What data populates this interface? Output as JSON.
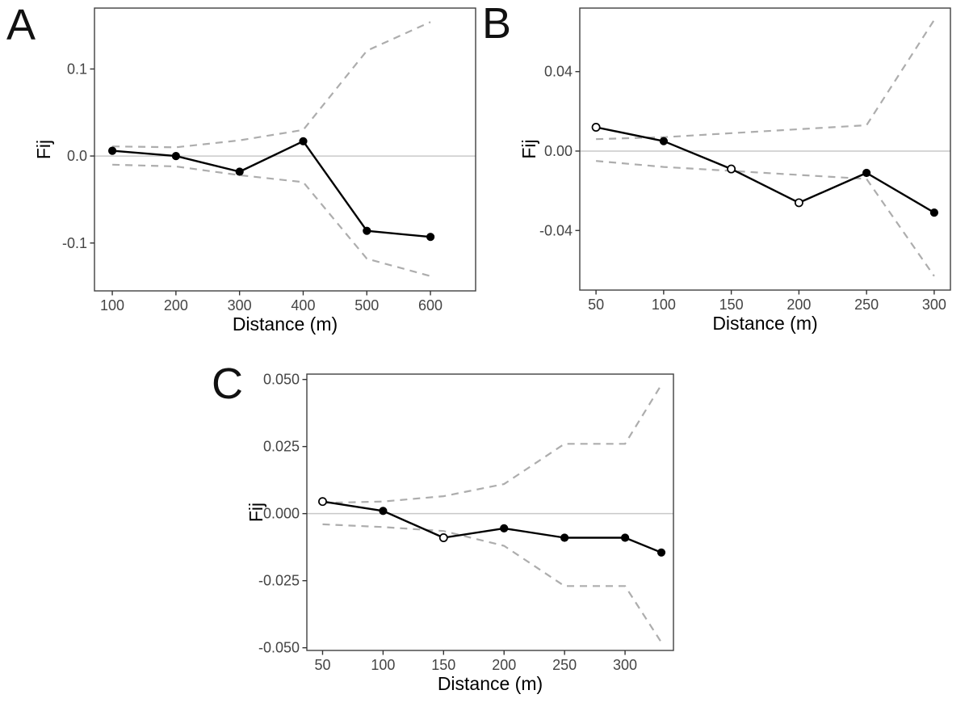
{
  "figure": {
    "background": "#ffffff",
    "panel_letters": [
      "A",
      "B",
      "C"
    ]
  },
  "colors": {
    "observed_line": "#000000",
    "envelope_dashed": "#adadad",
    "zero_line": "#c9c9c9",
    "panel_border": "#404040",
    "tick_mark": "#333333",
    "tick_text": "#444444",
    "axis_title_text": "#000000",
    "open_marker_fill": "#ffffff"
  },
  "chart_data": [
    {
      "type": "line",
      "panel_label": "A",
      "title": "",
      "xlabel": "Distance (m)",
      "ylabel": "Fij",
      "grid": "off",
      "legend": "none",
      "xlim": [
        72,
        671
      ],
      "ylim": [
        -0.155,
        0.17
      ],
      "xticks": [
        100,
        200,
        300,
        400,
        500,
        600
      ],
      "xtick_labels": [
        "100",
        "200",
        "300",
        "400",
        "500",
        "600"
      ],
      "yticks": [
        -0.1,
        0.0,
        0.1
      ],
      "ytick_labels": [
        "-0.1",
        "0.0",
        "0.1"
      ],
      "zero_line": 0,
      "x": [
        100,
        200,
        300,
        400,
        500,
        600
      ],
      "series": [
        {
          "name": "observed-kinship",
          "style": "solid-points",
          "values": [
            0.006,
            0.0,
            -0.018,
            0.017,
            -0.086,
            -0.093
          ],
          "open_markers": [
            false,
            false,
            false,
            false,
            false,
            false
          ]
        },
        {
          "name": "upper-confidence-envelope",
          "style": "dashed",
          "values": [
            0.011,
            0.01,
            0.018,
            0.03,
            0.121,
            0.154
          ]
        },
        {
          "name": "lower-confidence-envelope",
          "style": "dashed",
          "values": [
            -0.01,
            -0.012,
            -0.022,
            -0.03,
            -0.118,
            -0.138
          ]
        }
      ]
    },
    {
      "type": "line",
      "panel_label": "B",
      "title": "",
      "xlabel": "Distance (m)",
      "ylabel": "Fij",
      "grid": "off",
      "legend": "none",
      "xlim": [
        38,
        312
      ],
      "ylim": [
        -0.07,
        0.072
      ],
      "xticks": [
        50,
        100,
        150,
        200,
        250,
        300
      ],
      "xtick_labels": [
        "50",
        "100",
        "150",
        "200",
        "250",
        "300"
      ],
      "yticks": [
        -0.04,
        0.0,
        0.04
      ],
      "ytick_labels": [
        "-0.04",
        "0.00",
        "0.04"
      ],
      "zero_line": 0,
      "x": [
        50,
        100,
        150,
        200,
        250,
        300
      ],
      "series": [
        {
          "name": "observed-kinship",
          "style": "solid-points",
          "values": [
            0.012,
            0.005,
            -0.009,
            -0.026,
            -0.011,
            -0.031
          ],
          "open_markers": [
            true,
            false,
            true,
            true,
            false,
            false
          ]
        },
        {
          "name": "upper-confidence-envelope",
          "style": "dashed",
          "values": [
            0.006,
            0.007,
            0.009,
            0.011,
            0.013,
            0.066
          ]
        },
        {
          "name": "lower-confidence-envelope",
          "style": "dashed",
          "values": [
            -0.005,
            -0.008,
            -0.01,
            -0.012,
            -0.014,
            -0.063
          ]
        }
      ]
    },
    {
      "type": "line",
      "panel_label": "C",
      "title": "",
      "xlabel": "Distance (m)",
      "ylabel": "Fij",
      "grid": "off",
      "legend": "none",
      "xlim": [
        37,
        340
      ],
      "ylim": [
        -0.051,
        0.052
      ],
      "xticks": [
        50,
        100,
        150,
        200,
        250,
        300
      ],
      "xtick_labels": [
        "50",
        "100",
        "150",
        "200",
        "250",
        "300"
      ],
      "yticks": [
        -0.05,
        -0.025,
        0.0,
        0.025,
        0.05
      ],
      "ytick_labels": [
        "-0.050",
        "-0.025",
        "0.000",
        "0.025",
        "0.050"
      ],
      "zero_line": 0,
      "x": [
        50,
        100,
        150,
        200,
        250,
        300,
        330
      ],
      "series": [
        {
          "name": "observed-kinship",
          "style": "solid-points",
          "values": [
            0.0045,
            0.001,
            -0.009,
            -0.0055,
            -0.009,
            -0.009,
            -0.0145
          ],
          "open_markers": [
            true,
            false,
            true,
            false,
            false,
            false,
            false
          ]
        },
        {
          "name": "upper-confidence-envelope",
          "style": "dashed",
          "values": [
            0.004,
            0.0045,
            0.0065,
            0.011,
            0.026,
            0.026,
            0.048
          ]
        },
        {
          "name": "lower-confidence-envelope",
          "style": "dashed",
          "values": [
            -0.004,
            -0.005,
            -0.0065,
            -0.012,
            -0.027,
            -0.027,
            -0.048
          ]
        }
      ]
    }
  ]
}
